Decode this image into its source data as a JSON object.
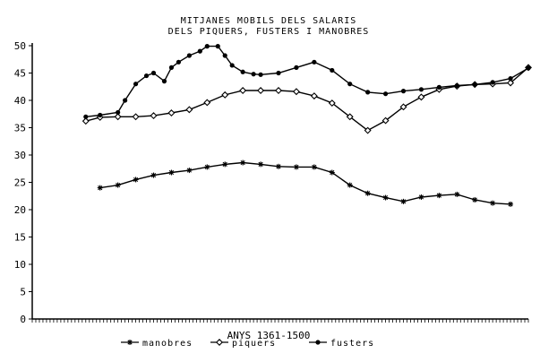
{
  "chart_data": {
    "type": "line",
    "title": "MITJANES MOBILS DELS SALARIS",
    "subtitle": "DELS PIQUERS, FUSTERS I MANOBRES",
    "xlabel": "ANYS 1361-1500",
    "ylabel": "",
    "xlim": [
      1361,
      1500
    ],
    "ylim": [
      0,
      50
    ],
    "y_ticks": [
      "0",
      "5",
      "10",
      "15",
      "20",
      "25",
      "30",
      "35",
      "40",
      "45",
      "50"
    ],
    "grid": false,
    "legend_position": "bottom",
    "series": [
      {
        "name": "manobres",
        "marker": "asterisk",
        "x": [
          1380,
          1385,
          1390,
          1395,
          1400,
          1405,
          1410,
          1415,
          1420,
          1425,
          1430,
          1435,
          1440,
          1445,
          1450,
          1455,
          1460,
          1465,
          1470,
          1475,
          1480,
          1485,
          1490,
          1495
        ],
        "y": [
          24,
          24.5,
          25.5,
          26.3,
          26.8,
          27.2,
          27.8,
          28.3,
          28.6,
          28.3,
          27.9,
          27.8,
          27.8,
          26.8,
          24.5,
          23,
          22.2,
          21.5,
          22.3,
          22.6,
          22.8,
          21.8,
          21.2,
          21
        ]
      },
      {
        "name": "piquers",
        "marker": "diamond",
        "x": [
          1376,
          1380,
          1385,
          1390,
          1395,
          1400,
          1405,
          1410,
          1415,
          1420,
          1425,
          1430,
          1435,
          1440,
          1445,
          1450,
          1455,
          1460,
          1465,
          1470,
          1475,
          1480,
          1485,
          1490,
          1495,
          1500
        ],
        "y": [
          36.2,
          36.9,
          37,
          37,
          37.2,
          37.7,
          38.3,
          39.6,
          41,
          41.8,
          41.8,
          41.8,
          41.6,
          40.8,
          39.5,
          37,
          34.5,
          36.3,
          38.8,
          40.6,
          42,
          42.6,
          42.9,
          43,
          43.2,
          46
        ]
      },
      {
        "name": "fusters",
        "marker": "filled-circle",
        "x": [
          1376,
          1380,
          1385,
          1387,
          1390,
          1393,
          1395,
          1398,
          1400,
          1402,
          1405,
          1408,
          1410,
          1413,
          1415,
          1417,
          1420,
          1423,
          1425,
          1430,
          1435,
          1440,
          1445,
          1450,
          1455,
          1460,
          1465,
          1470,
          1475,
          1480,
          1485,
          1490,
          1495,
          1500
        ],
        "y": [
          37,
          37.3,
          37.8,
          40,
          43,
          44.5,
          45,
          43.5,
          46,
          47,
          48.2,
          49,
          49.9,
          49.9,
          48.2,
          46.4,
          45.2,
          44.8,
          44.7,
          45,
          46,
          47,
          45.5,
          43,
          41.5,
          41.2,
          41.7,
          42,
          42.4,
          42.7,
          42.9,
          43.3,
          44,
          45.9
        ]
      }
    ]
  }
}
